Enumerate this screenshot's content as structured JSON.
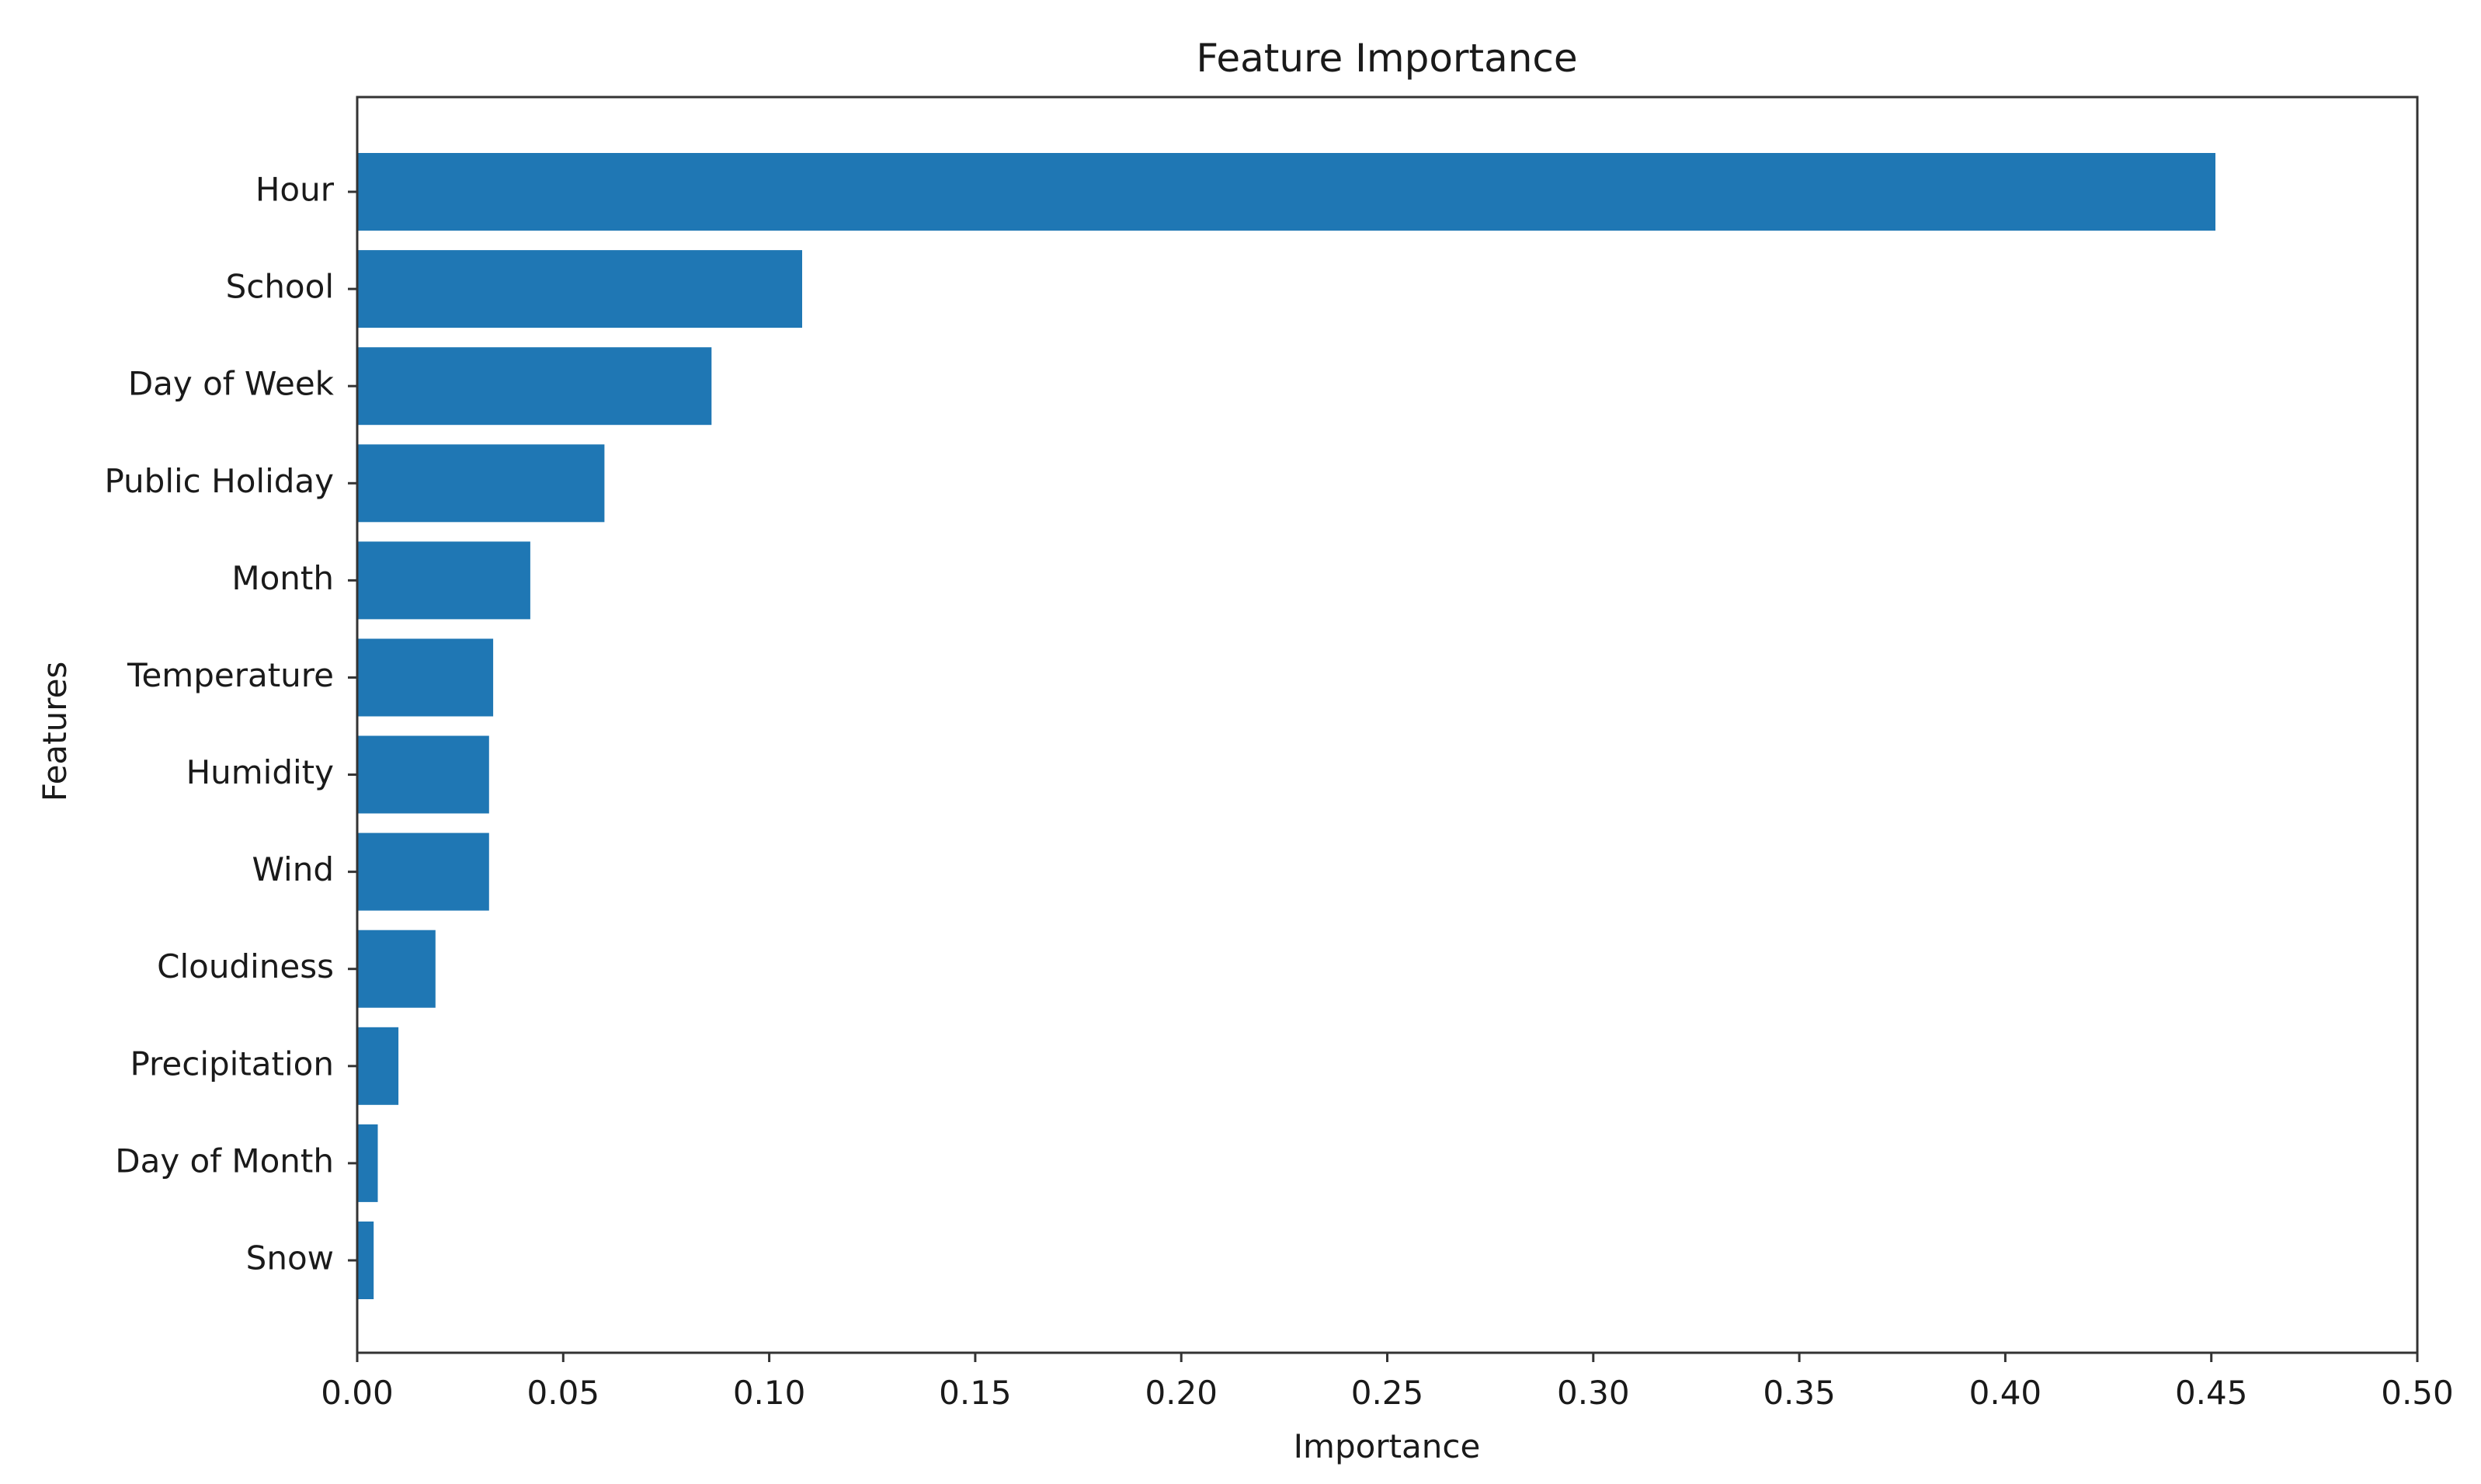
{
  "chart_data": {
    "type": "bar",
    "orientation": "horizontal",
    "title": "Feature Importance",
    "xlabel": "Importance",
    "ylabel": "Features",
    "xlim": [
      0,
      0.5
    ],
    "x_ticks": [
      "0.00",
      "0.05",
      "0.10",
      "0.15",
      "0.20",
      "0.25",
      "0.30",
      "0.35",
      "0.40",
      "0.45",
      "0.50"
    ],
    "categories": [
      "Hour",
      "School",
      "Day of Week",
      "Public Holiday",
      "Month",
      "Temperature",
      "Humidity",
      "Wind",
      "Cloudiness",
      "Precipitation",
      "Day of Month",
      "Snow"
    ],
    "values": [
      0.451,
      0.108,
      0.086,
      0.06,
      0.042,
      0.033,
      0.032,
      0.032,
      0.019,
      0.01,
      0.005,
      0.004
    ],
    "bar_color": "#1f77b4",
    "grid": false,
    "legend": false
  }
}
